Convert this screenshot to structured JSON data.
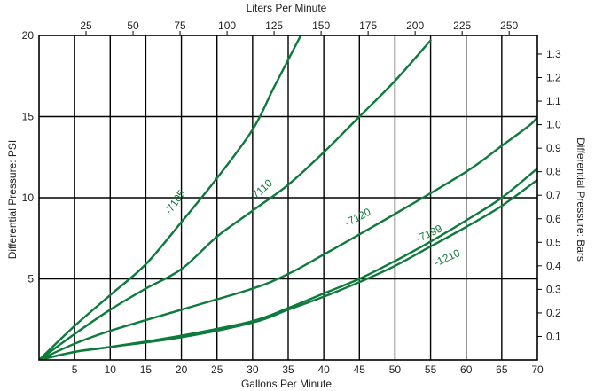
{
  "chart_data": {
    "type": "line",
    "title": "",
    "xlabel": "Gallons Per Minute",
    "x2label": "Liters Per Minute",
    "ylabel": "Differential Pressure: PSI",
    "y2label": "Differential Pressure: Bars",
    "xlim": [
      0,
      70
    ],
    "ylim": [
      0,
      20
    ],
    "x2lim": [
      0,
      265
    ],
    "y2lim": [
      0,
      1.379
    ],
    "x_ticks": [
      5,
      10,
      15,
      20,
      25,
      30,
      35,
      40,
      45,
      50,
      55,
      60,
      65,
      70
    ],
    "x_tick_labels": [
      "5",
      "10",
      "15",
      "20",
      "25",
      "30",
      "35",
      "40",
      "45",
      "50",
      "55",
      "60",
      "65",
      "70"
    ],
    "y_ticks": [
      5,
      10,
      15,
      20
    ],
    "y_tick_labels": [
      "5",
      "10",
      "15",
      "20"
    ],
    "x2_ticks": [
      25,
      50,
      75,
      100,
      125,
      150,
      175,
      200,
      225,
      250
    ],
    "x2_tick_labels": [
      "25",
      "50",
      "75",
      "100",
      "125",
      "150",
      "175",
      "200",
      "225",
      "250"
    ],
    "y2_ticks": [
      0.1,
      0.2,
      0.3,
      0.4,
      0.5,
      0.6,
      0.7,
      0.8,
      0.9,
      1.0,
      1.1,
      1.2,
      1.3
    ],
    "y2_tick_labels": [
      "0.1",
      "0.2",
      "0.3",
      "0.4",
      "0.5",
      "0.6",
      "0.7",
      "0.8",
      "0.9",
      "1.0",
      "1.1",
      "1.2",
      "1.3"
    ],
    "grid": true,
    "legend": "none",
    "line_color": "#0e7a3c",
    "series": [
      {
        "name": "-7105",
        "x": [
          0,
          5,
          10,
          15,
          20,
          25,
          30,
          33,
          37
        ],
        "y": [
          0,
          2.1,
          4.0,
          5.9,
          8.5,
          11.2,
          14.2,
          16.8,
          20.2
        ]
      },
      {
        "name": "-7110",
        "x": [
          0,
          5,
          10,
          15,
          20,
          25,
          30,
          35,
          40,
          45,
          50,
          55
        ],
        "y": [
          0,
          1.6,
          3.1,
          4.4,
          5.6,
          7.6,
          9.2,
          10.8,
          12.8,
          15.0,
          17.2,
          19.7
        ]
      },
      {
        "name": "-7120",
        "x": [
          0,
          5,
          10,
          20,
          30,
          35,
          40,
          50,
          60,
          65,
          69,
          70
        ],
        "y": [
          0,
          1.0,
          1.8,
          3.1,
          4.4,
          5.3,
          6.5,
          9.0,
          11.6,
          13.2,
          14.5,
          15.0
        ]
      },
      {
        "name": "-7199",
        "x": [
          0,
          5,
          10,
          20,
          30,
          35,
          40,
          45,
          50,
          55,
          60,
          65,
          70
        ],
        "y": [
          0,
          0.5,
          0.8,
          1.5,
          2.4,
          3.2,
          4.1,
          5.0,
          6.1,
          7.3,
          8.6,
          10.0,
          11.8
        ]
      },
      {
        "name": "-1210",
        "x": [
          0,
          5,
          10,
          20,
          30,
          35,
          40,
          45,
          50,
          55,
          60,
          65,
          70
        ],
        "y": [
          0,
          0.5,
          0.8,
          1.4,
          2.3,
          3.1,
          3.9,
          4.8,
          5.8,
          7.0,
          8.2,
          9.5,
          11.1
        ]
      }
    ],
    "series_labels": [
      {
        "text": "-7105",
        "x": 19.5,
        "y": 9.6,
        "angle": -55
      },
      {
        "text": "-7110",
        "x": 31.5,
        "y": 10.3,
        "angle": -42
      },
      {
        "text": "-7120",
        "x": 45.0,
        "y": 8.6,
        "angle": -27
      },
      {
        "text": "-7199",
        "x": 55.0,
        "y": 7.6,
        "angle": -25
      },
      {
        "text": "-1210",
        "x": 57.5,
        "y": 6.1,
        "angle": -24
      }
    ]
  }
}
